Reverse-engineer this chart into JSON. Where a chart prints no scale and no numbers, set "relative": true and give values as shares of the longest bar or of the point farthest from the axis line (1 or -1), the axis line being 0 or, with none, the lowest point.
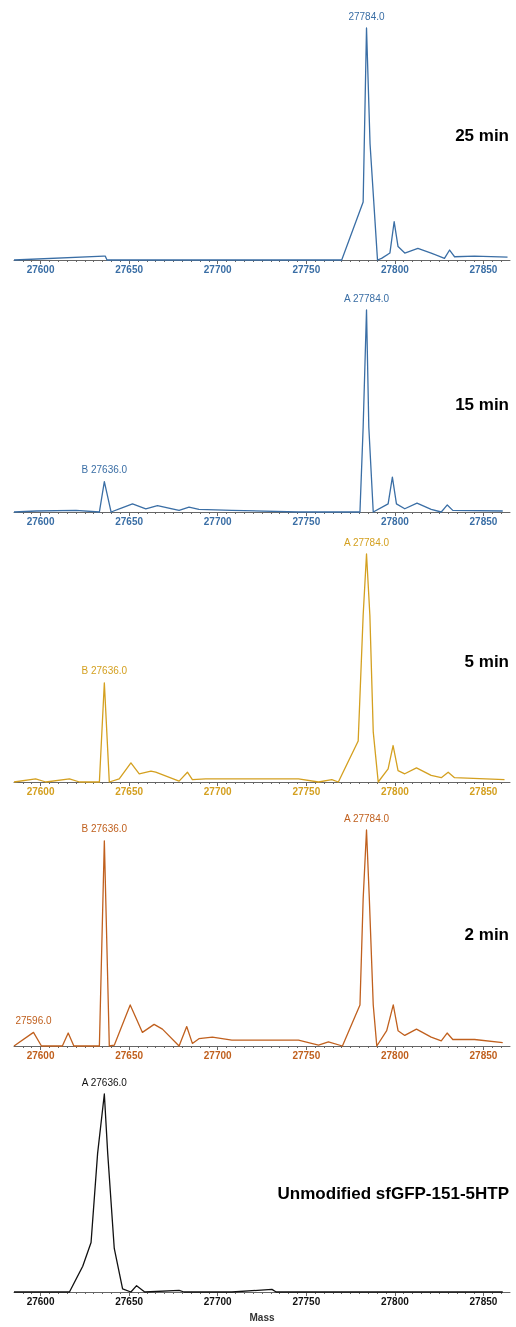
{
  "chart_data": [
    {
      "type": "line",
      "title": "25 min",
      "relative": true,
      "marker": "none",
      "xlim": [
        27585,
        27865
      ],
      "xticks": [
        27600,
        27650,
        27700,
        27750,
        27800,
        27850
      ],
      "annotations": [
        {
          "text": "27784.0",
          "x": 27784,
          "y": 1
        }
      ],
      "x": [
        27585,
        27635.6,
        27636.5,
        27637.5,
        27770,
        27782.1,
        27784,
        27786,
        27790.2,
        27792.5,
        27797.2,
        27799.6,
        27801.8,
        27805.6,
        27813,
        27820.5,
        27828,
        27830.9,
        27833.7,
        27845,
        27863.6
      ],
      "series": [
        {
          "color": "#3a6ea5",
          "values": [
            0,
            0.017,
            0.017,
            0,
            0,
            0.25,
            1,
            0.5,
            0,
            0.007,
            0.03,
            0.165,
            0.058,
            0.03,
            0.05,
            0.03,
            0.007,
            0.043,
            0.014,
            0.017,
            0.012
          ]
        }
      ]
    },
    {
      "type": "line",
      "title": "15 min",
      "relative": true,
      "marker": "none",
      "xlim": [
        27585,
        27865
      ],
      "xticks": [
        27600,
        27650,
        27700,
        27750,
        27800,
        27850
      ],
      "annotations": [
        {
          "text": "B 27636.0",
          "x": 27636,
          "y": 0.15
        },
        {
          "text": "A 27784.0",
          "x": 27784,
          "y": 1
        }
      ],
      "x": [
        27585,
        27597.6,
        27620,
        27633.2,
        27636,
        27639.8,
        27651.9,
        27659.4,
        27666,
        27678.2,
        27683.8,
        27689.4,
        27708,
        27745.6,
        27780.3,
        27782.1,
        27784,
        27785.3,
        27787.8,
        27796.2,
        27798.6,
        27800.9,
        27805.6,
        27812.5,
        27820.5,
        27826.2,
        27829.6,
        27832.7,
        27860.9
      ],
      "series": [
        {
          "color": "#3a6ea5",
          "values": [
            0,
            0.005,
            0.008,
            0,
            0.15,
            0,
            0.04,
            0.016,
            0.031,
            0.008,
            0.024,
            0.013,
            0.008,
            0,
            0,
            0.42,
            1,
            0.42,
            0,
            0.04,
            0.173,
            0.04,
            0.016,
            0.044,
            0.013,
            0,
            0.035,
            0.008,
            0.005
          ]
        }
      ]
    },
    {
      "type": "line",
      "title": "5 min",
      "relative": true,
      "marker": "none",
      "xlim": [
        27585,
        27865
      ],
      "xticks": [
        27600,
        27650,
        27700,
        27750,
        27800,
        27850
      ],
      "annotations": [
        {
          "text": "B 27636.0",
          "x": 27636,
          "y": 0.435
        },
        {
          "text": "A 27784.0",
          "x": 27784,
          "y": 1
        }
      ],
      "x": [
        27585,
        27597.2,
        27603,
        27616.3,
        27622,
        27633.2,
        27636,
        27638.8,
        27644.4,
        27651,
        27655.7,
        27662.3,
        27665,
        27678.2,
        27682.9,
        27685.7,
        27693.2,
        27745.6,
        27756.9,
        27764.4,
        27768.1,
        27779.3,
        27782.1,
        27784,
        27785.9,
        27787.8,
        27790.6,
        27796.2,
        27799,
        27801.8,
        27805.6,
        27812.2,
        27820.5,
        27826.2,
        27830.1,
        27833.7,
        27861.9
      ],
      "series": [
        {
          "color": "#d4a020",
          "values": [
            0,
            0.014,
            0,
            0.014,
            0,
            0,
            0.435,
            0,
            0.014,
            0.084,
            0.036,
            0.048,
            0.043,
            0.004,
            0.043,
            0.01,
            0.014,
            0.014,
            0,
            0.01,
            0,
            0.18,
            0.73,
            1,
            0.73,
            0.22,
            0,
            0.058,
            0.16,
            0.05,
            0.036,
            0.062,
            0.029,
            0.019,
            0.043,
            0.019,
            0.01
          ]
        }
      ]
    },
    {
      "type": "line",
      "title": "2 min",
      "relative": true,
      "marker": "none",
      "xlim": [
        27585,
        27865
      ],
      "xticks": [
        27600,
        27650,
        27700,
        27750,
        27800,
        27850
      ],
      "annotations": [
        {
          "text": "27596.0",
          "x": 27596,
          "y": 0.063
        },
        {
          "text": "B 27636.0",
          "x": 27636,
          "y": 0.95
        },
        {
          "text": "A 27784.0",
          "x": 27784,
          "y": 1
        }
      ],
      "x": [
        27585,
        27596,
        27600.5,
        27612.3,
        27615.6,
        27618.8,
        27633.2,
        27636,
        27638.8,
        27641.6,
        27650.6,
        27657.5,
        27664.1,
        27668.8,
        27678.2,
        27682.5,
        27685.7,
        27689.4,
        27697,
        27708,
        27745.6,
        27756.9,
        27762.5,
        27770.4,
        27780.3,
        27782.1,
        27784,
        27785.6,
        27787.8,
        27789.8,
        27795.4,
        27799.1,
        27801.8,
        27805.6,
        27812.2,
        27820.5,
        27826.2,
        27829.5,
        27832.7,
        27845,
        27860.9
      ],
      "series": [
        {
          "color": "#c0601e",
          "values": [
            0,
            0.063,
            0,
            0,
            0.06,
            0,
            0,
            0.95,
            0,
            0.004,
            0.19,
            0.063,
            0.1,
            0.078,
            0,
            0.09,
            0.012,
            0.034,
            0.041,
            0.027,
            0.027,
            0.004,
            0.019,
            0,
            0.19,
            0.68,
            1,
            0.68,
            0.19,
            0,
            0.071,
            0.19,
            0.071,
            0.049,
            0.078,
            0.041,
            0.024,
            0.06,
            0.03,
            0.03,
            0.016
          ]
        }
      ]
    },
    {
      "type": "line",
      "title": "Unmodified sfGFP-151-5HTP",
      "xlabel": "Mass",
      "relative": true,
      "marker": "none",
      "xlim": [
        27585,
        27865
      ],
      "xticks": [
        27600,
        27650,
        27700,
        27750,
        27800,
        27850
      ],
      "annotations": [
        {
          "text": "A 27636.0",
          "x": 27636,
          "y": 1
        }
      ],
      "x": [
        27585,
        27616.3,
        27623.8,
        27628.5,
        27632.2,
        27636,
        27637.9,
        27641.6,
        27646.3,
        27651,
        27654.2,
        27658.8,
        27678.2,
        27681,
        27708,
        27730.6,
        27733,
        27860.9
      ],
      "series": [
        {
          "color": "#111111",
          "values": [
            0,
            0,
            0.13,
            0.25,
            0.7,
            1,
            0.7,
            0.22,
            0.016,
            0,
            0.032,
            0,
            0.008,
            0,
            0,
            0.013,
            0,
            0
          ]
        }
      ]
    }
  ]
}
